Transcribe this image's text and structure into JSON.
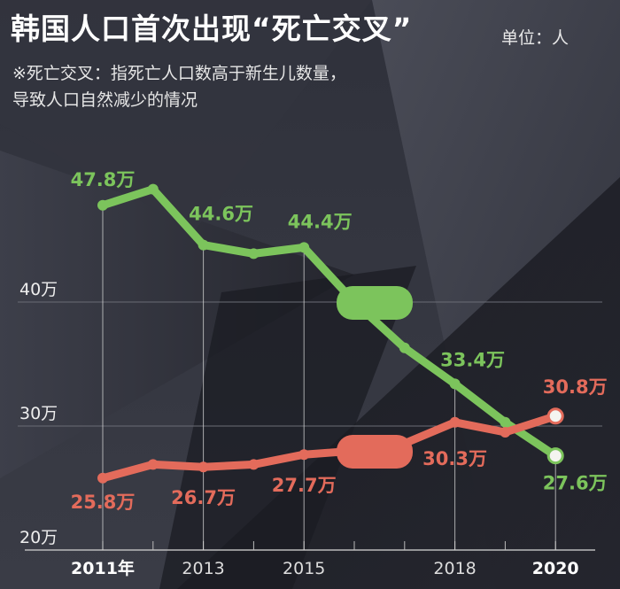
{
  "title": "韩国人口首次出现“死亡交叉”",
  "unit": "单位：人",
  "note_line1": "※死亡交叉：指死亡人口数高于新生儿数量，",
  "note_line2": "导致人口自然减少的情况",
  "colors": {
    "births": "#7cc45c",
    "deaths": "#e36b5b",
    "background": "#262831"
  },
  "chart_data": {
    "type": "line",
    "x": [
      2011,
      2012,
      2013,
      2014,
      2015,
      2016,
      2017,
      2018,
      2019,
      2020
    ],
    "x_tick_labels": [
      {
        "year": 2011,
        "label": "2011年"
      },
      {
        "year": 2013,
        "label": "2013"
      },
      {
        "year": 2015,
        "label": "2015"
      },
      {
        "year": 2018,
        "label": "2018"
      },
      {
        "year": 2020,
        "label": "2020"
      }
    ],
    "y_ticks": [
      {
        "value": 20,
        "label": "20万"
      },
      {
        "value": 30,
        "label": "30万"
      },
      {
        "value": 40,
        "label": "40万"
      }
    ],
    "ylim": [
      20,
      50
    ],
    "series": [
      {
        "key": "births",
        "color": "#7cc45c",
        "values": [
          47.8,
          49.1,
          44.6,
          43.9,
          44.4,
          40.0,
          36.3,
          33.4,
          30.3,
          27.6
        ],
        "labels": [
          {
            "year": 2011,
            "text": "47.8万"
          },
          {
            "year": 2013,
            "text": "44.6万"
          },
          {
            "year": 2015,
            "text": "44.4万"
          },
          {
            "year": 2018,
            "text": "33.4万"
          },
          {
            "year": 2020,
            "text": "27.6万"
          }
        ]
      },
      {
        "key": "deaths",
        "color": "#e36b5b",
        "values": [
          25.8,
          26.9,
          26.7,
          26.9,
          27.7,
          28.0,
          28.6,
          30.3,
          29.5,
          30.8
        ],
        "labels": [
          {
            "year": 2011,
            "text": "25.8万"
          },
          {
            "year": 2013,
            "text": "26.7万"
          },
          {
            "year": 2015,
            "text": "27.7万"
          },
          {
            "year": 2018,
            "text": "30.3万"
          },
          {
            "year": 2020,
            "text": "30.8万"
          }
        ]
      }
    ]
  }
}
